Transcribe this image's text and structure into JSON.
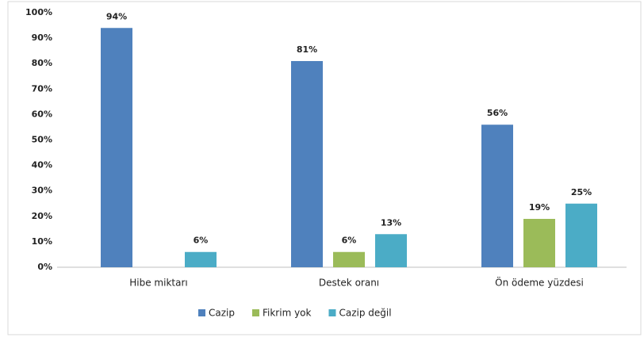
{
  "chart_data": {
    "type": "bar",
    "categories": [
      "Hibe miktarı",
      "Destek oranı",
      "Ön ödeme yüzdesi"
    ],
    "series": [
      {
        "name": "Cazip",
        "color": "#4f81bd",
        "values": [
          94,
          81,
          56
        ],
        "value_labels": [
          "94%",
          "81%",
          "56%"
        ]
      },
      {
        "name": "Fikrim yok",
        "color": "#9bbb59",
        "values": [
          null,
          6,
          19
        ],
        "value_labels": [
          null,
          "6%",
          "19%"
        ]
      },
      {
        "name": "Cazip değil",
        "color": "#4bacc6",
        "values": [
          6,
          13,
          25
        ],
        "value_labels": [
          "6%",
          "13%",
          "25%"
        ]
      }
    ],
    "ylim": [
      0,
      100
    ],
    "yticks": [
      {
        "value": 0,
        "label": "0%"
      },
      {
        "value": 10,
        "label": "10%"
      },
      {
        "value": 20,
        "label": "20%"
      },
      {
        "value": 30,
        "label": "30%"
      },
      {
        "value": 40,
        "label": "40%"
      },
      {
        "value": 50,
        "label": "50%"
      },
      {
        "value": 60,
        "label": "60%"
      },
      {
        "value": 70,
        "label": "70%"
      },
      {
        "value": 80,
        "label": "80%"
      },
      {
        "value": 90,
        "label": "90%"
      },
      {
        "value": 100,
        "label": "100%"
      }
    ],
    "grid": false,
    "legend": "bottom"
  }
}
